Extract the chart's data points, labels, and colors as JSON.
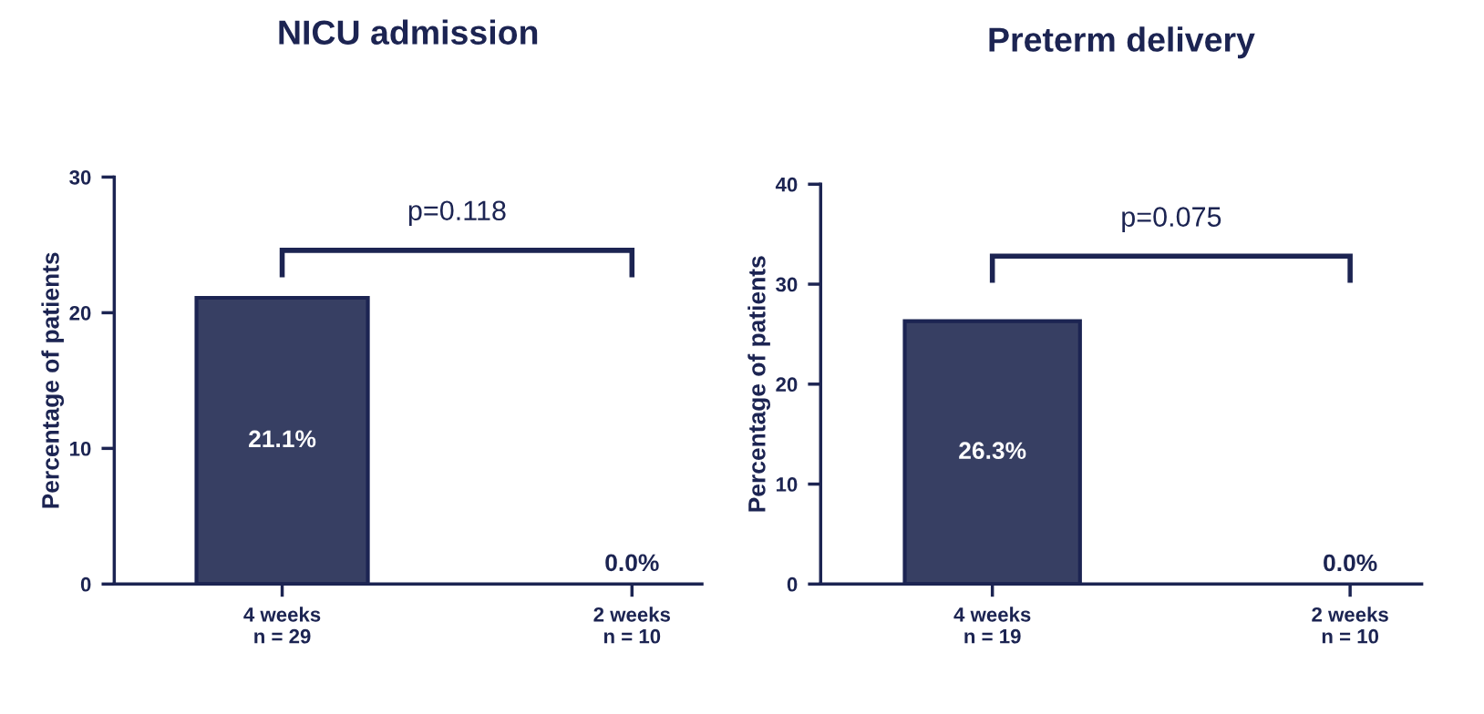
{
  "chart_data": [
    {
      "type": "bar",
      "title": "NICU admission",
      "ylabel": "Percentage of patients",
      "categories": [
        "4 weeks\nn = 29",
        "2 weeks\nn = 10"
      ],
      "values": [
        21.1,
        0.0
      ],
      "value_labels": [
        "21.1%",
        "0.0%"
      ],
      "color": "#373f63",
      "ylim": [
        0,
        30
      ],
      "yticks": [
        0,
        10,
        20,
        30
      ],
      "annotations": [
        "p=0.118"
      ]
    },
    {
      "type": "bar",
      "title": "Preterm delivery",
      "ylabel": "Percentage of patients",
      "categories": [
        "4 weeks\nn = 19",
        "2 weeks\nn = 10"
      ],
      "values": [
        26.3,
        0.0
      ],
      "value_labels": [
        "26.3%",
        "0.0%"
      ],
      "color": "#373f63",
      "ylim": [
        0,
        40
      ],
      "yticks": [
        0,
        10,
        20,
        30,
        40
      ],
      "annotations": [
        "p=0.075"
      ]
    }
  ]
}
